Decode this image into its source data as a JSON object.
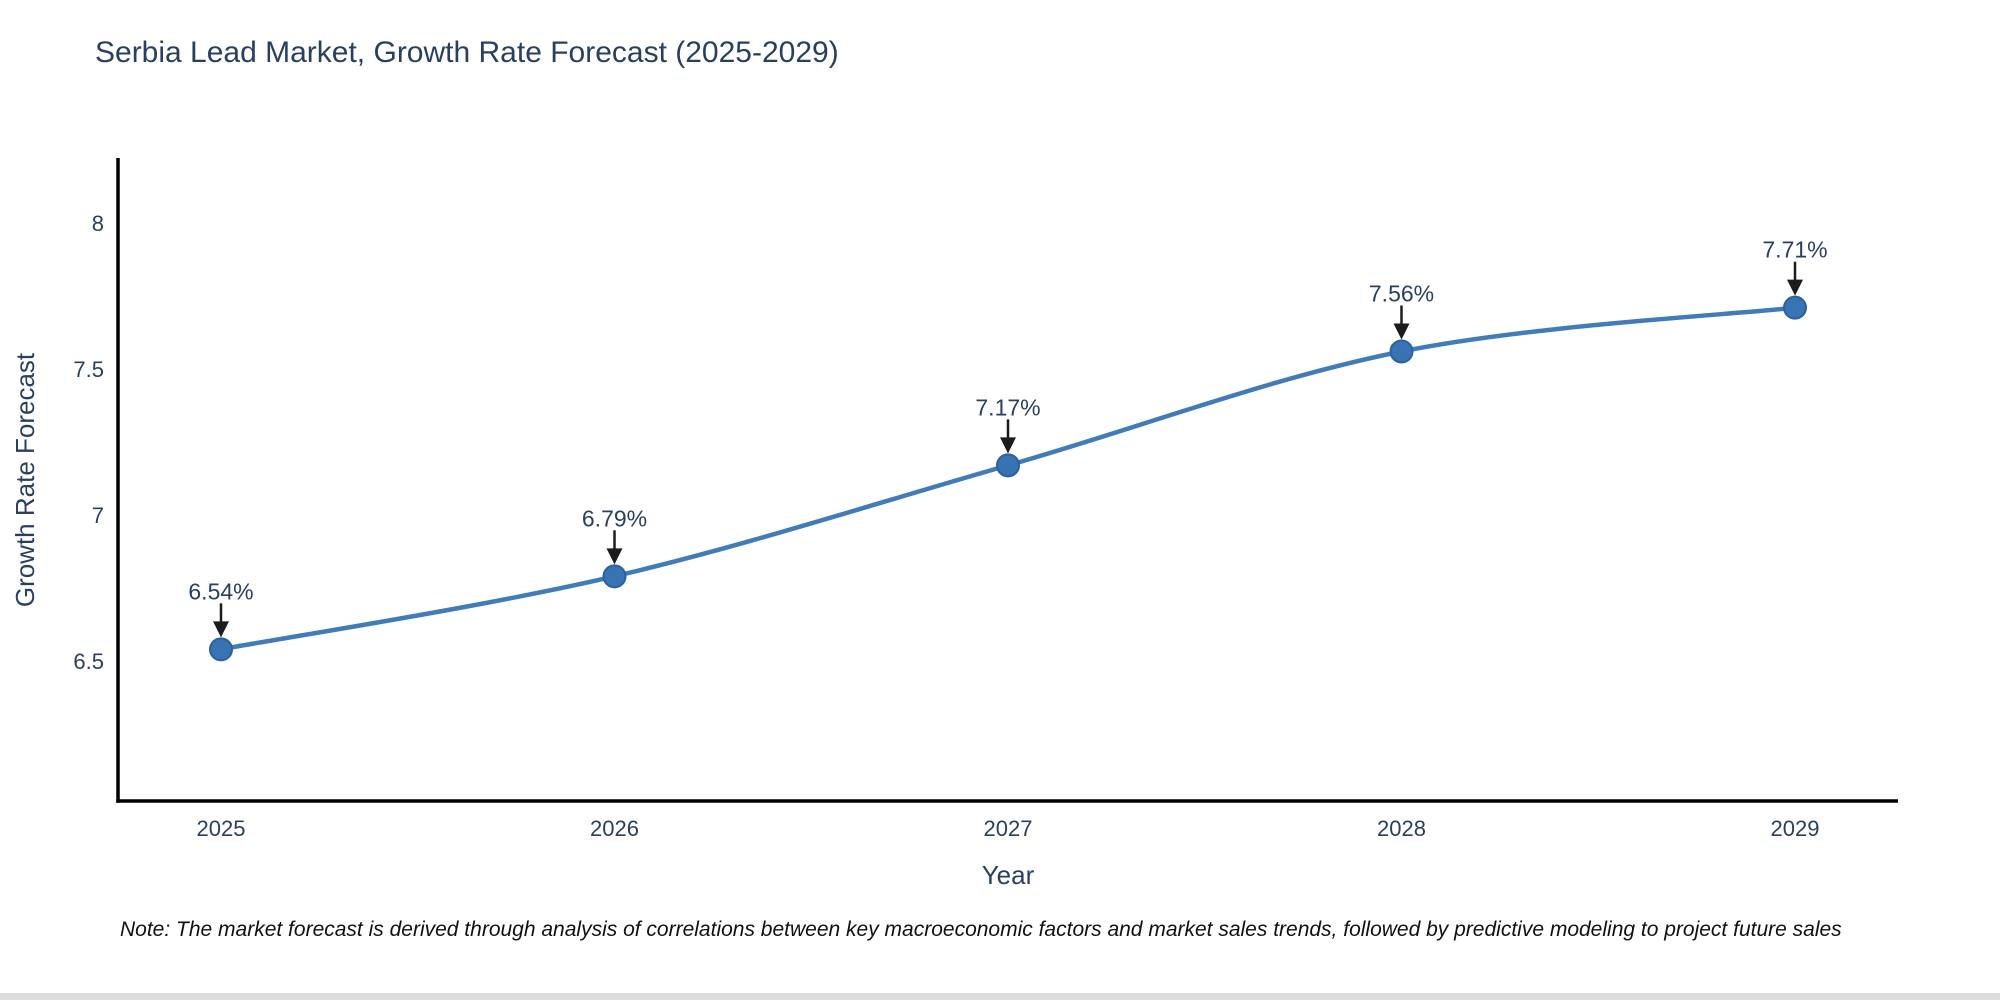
{
  "title": "Serbia Lead Market, Growth Rate Forecast (2025-2029)",
  "note": "Note: The market forecast is derived through analysis of correlations between key macroeconomic factors and market sales trends, followed by predictive modeling to project future sales",
  "colors": {
    "line": "#417cb8",
    "marker_fill": "#3873b3",
    "marker_edge": "#2d609c",
    "axis_line": "#000000",
    "text": "#2a3f5f",
    "annotation_arrow": "#1c1c1c",
    "bottom_strip": "#dcdcdc"
  },
  "chart_data": {
    "type": "line",
    "title": "Serbia Lead Market, Growth Rate Forecast (2025-2029)",
    "x": [
      2025,
      2026,
      2027,
      2028,
      2029
    ],
    "x_tick_labels": [
      "2025",
      "2026",
      "2027",
      "2028",
      "2029"
    ],
    "y": [
      6.54,
      6.79,
      7.17,
      7.56,
      7.71
    ],
    "point_labels": [
      "6.54%",
      "6.79%",
      "7.17%",
      "7.56%",
      "7.71%"
    ],
    "xlabel": "Year",
    "ylabel": "Growth Rate Forecast",
    "y_ticks": [
      6.5,
      7,
      7.5,
      8
    ],
    "y_tick_labels": [
      "6.5",
      "7",
      "7.5",
      "8"
    ],
    "ylim": [
      6.02,
      8.22
    ],
    "xlim": [
      2024.74,
      2029.26
    ],
    "grid": false,
    "legend": false,
    "line_shape": "spline",
    "annotations": "black down-arrows from each percentage label to its data point"
  }
}
